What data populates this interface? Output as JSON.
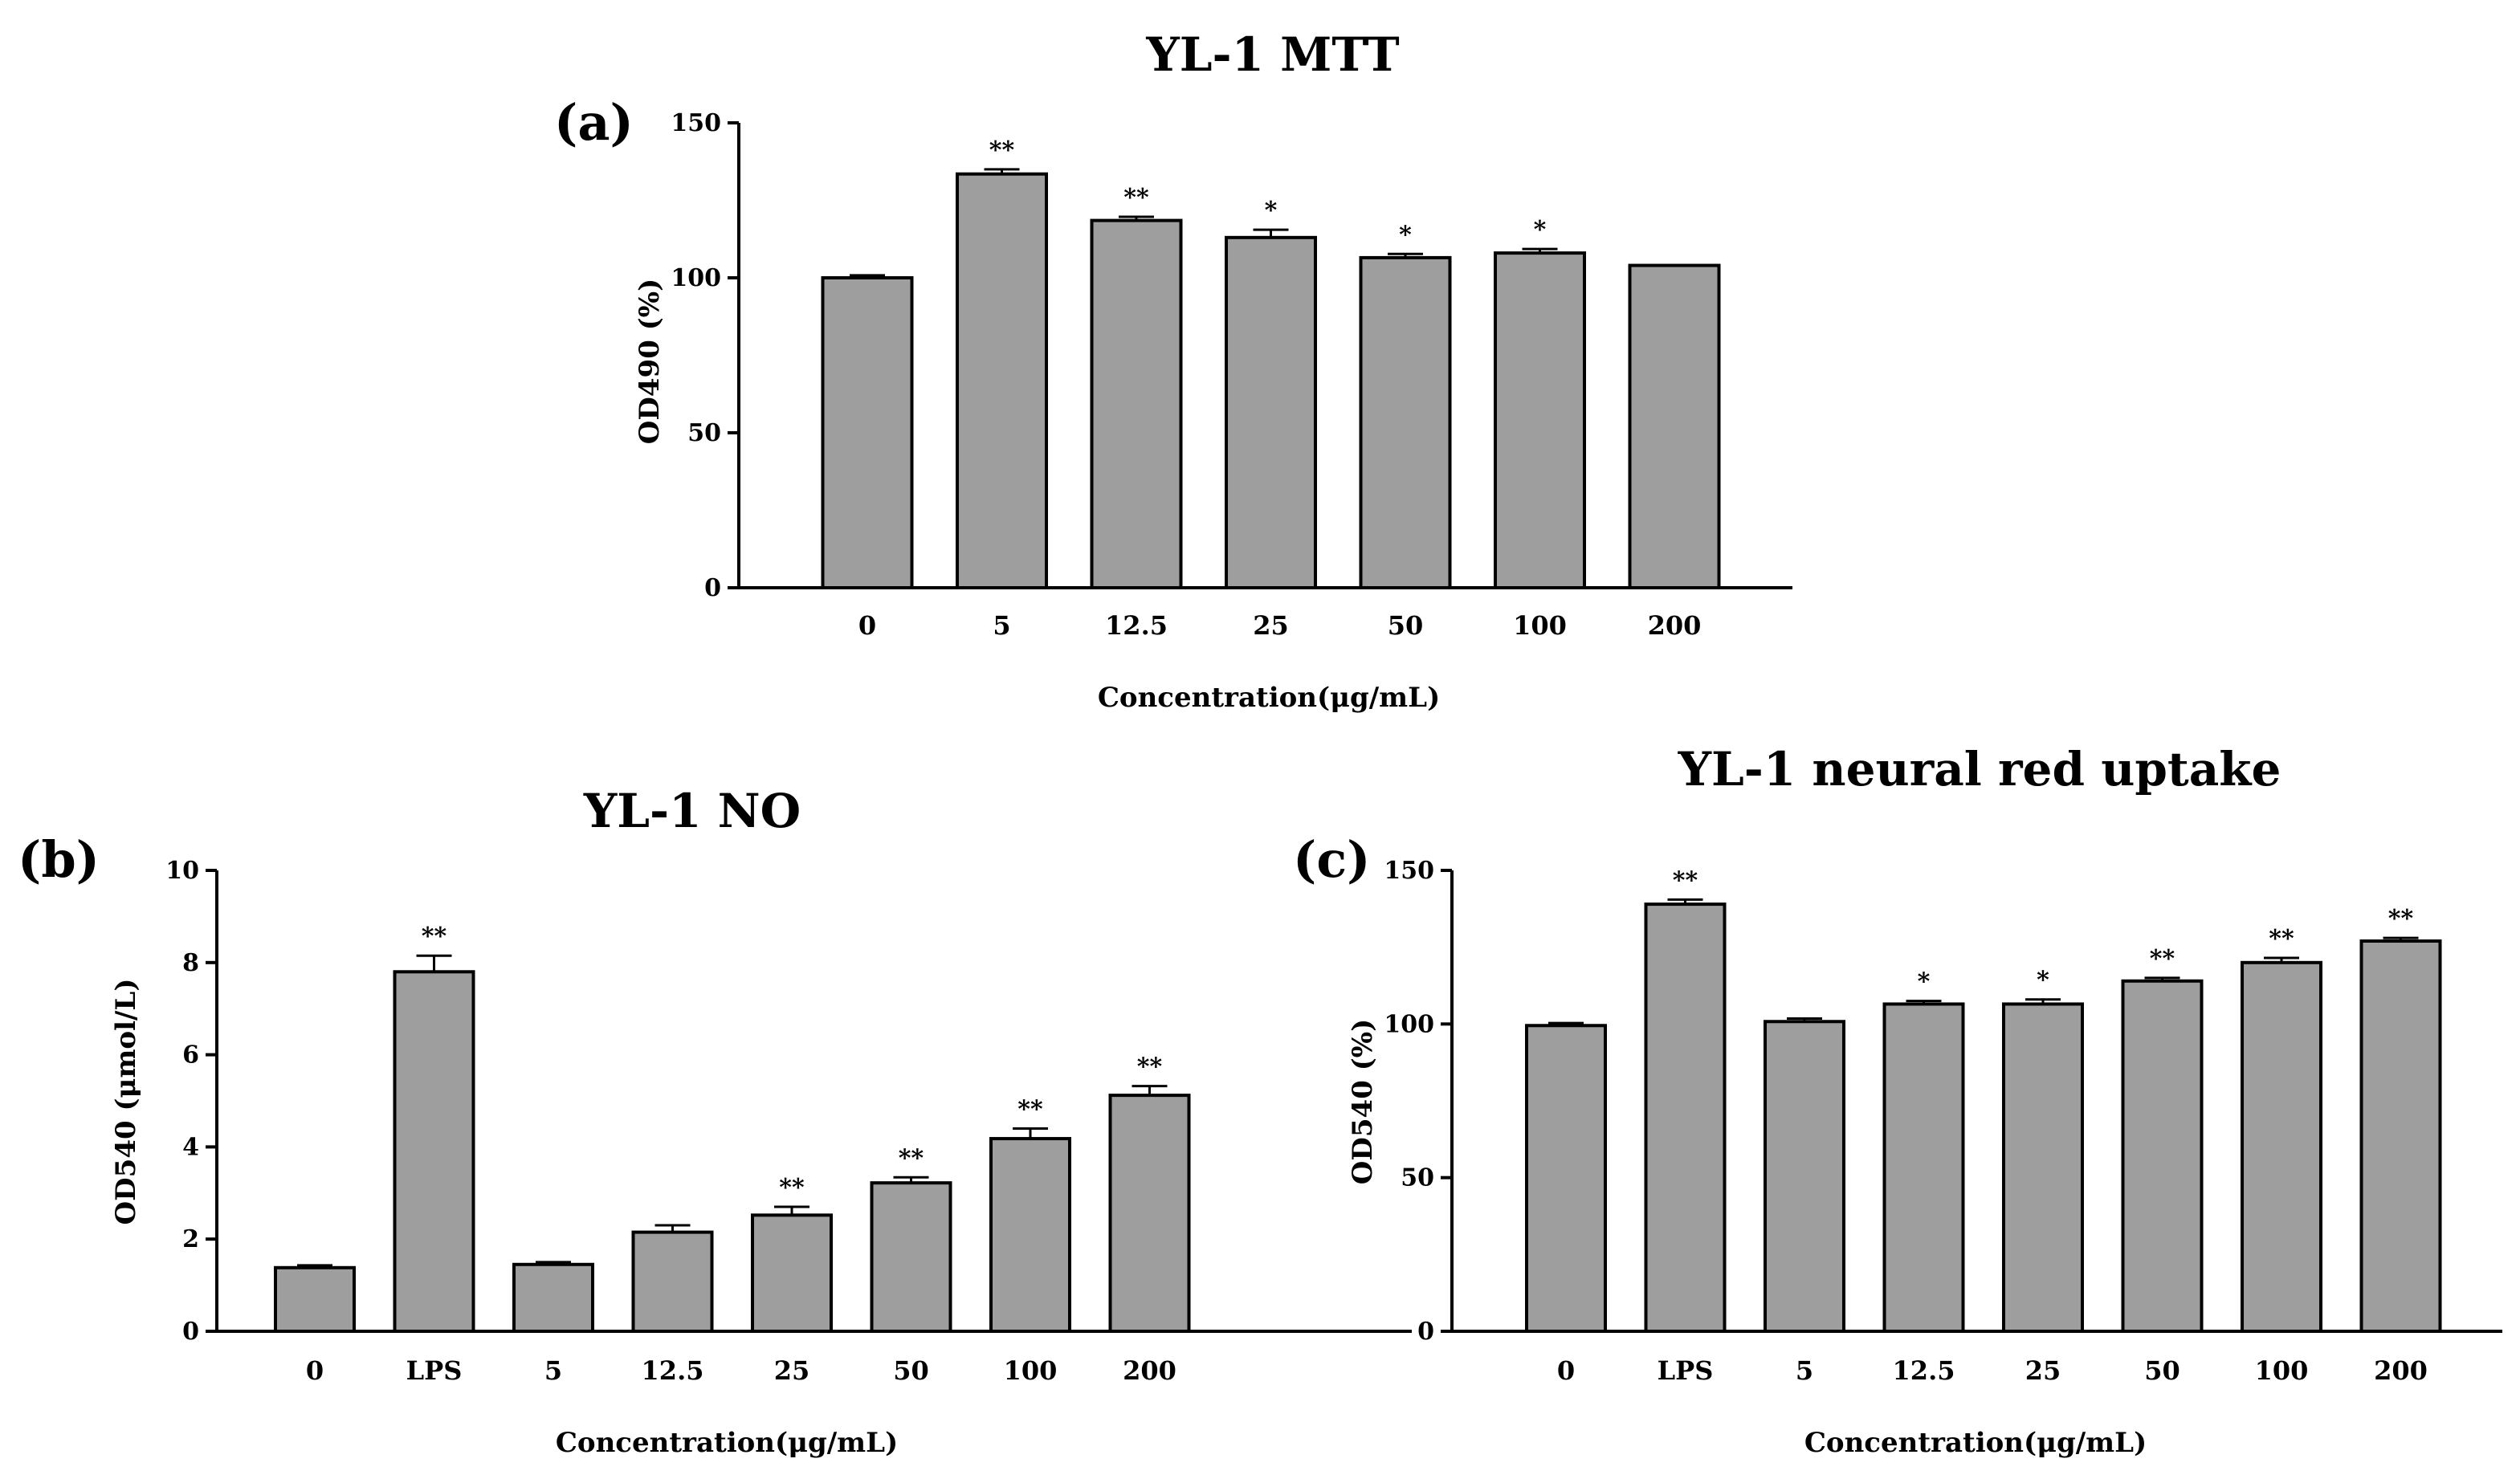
{
  "chart_data": [
    {
      "id": "a",
      "type": "bar",
      "panel_label": "(a)",
      "title": "YL-1 MTT",
      "xlabel": "Concentration(μg/mL)",
      "ylabel": "OD490 (%)",
      "ylim": [
        0,
        150
      ],
      "yticks": [
        0,
        50,
        100,
        150
      ],
      "categories": [
        "0",
        "5",
        "12.5",
        "25",
        "50",
        "100",
        "200"
      ],
      "values": [
        100,
        133.5,
        118.5,
        113,
        106.5,
        108,
        104
      ],
      "errors": [
        0.8,
        1.5,
        1.2,
        2.5,
        1.2,
        1.3,
        0
      ],
      "significance": [
        "",
        "**",
        "**",
        "*",
        "*",
        "*",
        ""
      ],
      "bar_color": "#9e9e9e",
      "grid": false,
      "legend": "none"
    },
    {
      "id": "b",
      "type": "bar",
      "panel_label": "(b)",
      "title": "YL-1 NO",
      "xlabel": "Concentration(μg/mL)",
      "ylabel": "OD540 (μmol/L)",
      "ylim": [
        0,
        10
      ],
      "yticks": [
        0,
        2,
        4,
        6,
        8,
        10
      ],
      "categories": [
        "0",
        "LPS",
        "5",
        "12.5",
        "25",
        "50",
        "100",
        "200"
      ],
      "values": [
        1.38,
        7.8,
        1.45,
        2.15,
        2.52,
        3.22,
        4.18,
        5.12
      ],
      "errors": [
        0.05,
        0.35,
        0.05,
        0.15,
        0.18,
        0.12,
        0.22,
        0.2
      ],
      "significance": [
        "",
        "**",
        "",
        "",
        "**",
        "**",
        "**",
        "**"
      ],
      "bar_color": "#9e9e9e",
      "grid": false,
      "legend": "none"
    },
    {
      "id": "c",
      "type": "bar",
      "panel_label": "(c)",
      "title": "YL-1 neural red uptake",
      "xlabel": "Concentration(μg/mL)",
      "ylabel": "OD540 (%)",
      "ylim": [
        0,
        150
      ],
      "yticks": [
        0,
        50,
        100,
        150
      ],
      "categories": [
        "0",
        "LPS",
        "5",
        "12.5",
        "25",
        "50",
        "100",
        "200"
      ],
      "values": [
        99.5,
        139,
        100.8,
        106.5,
        106.5,
        114,
        120,
        127
      ],
      "errors": [
        0.8,
        1.5,
        1.0,
        1.0,
        1.5,
        1.0,
        1.5,
        1.0
      ],
      "significance": [
        "",
        "**",
        "",
        "*",
        "*",
        "**",
        "**",
        "**"
      ],
      "bar_color": "#9e9e9e",
      "grid": false,
      "legend": "none"
    }
  ]
}
